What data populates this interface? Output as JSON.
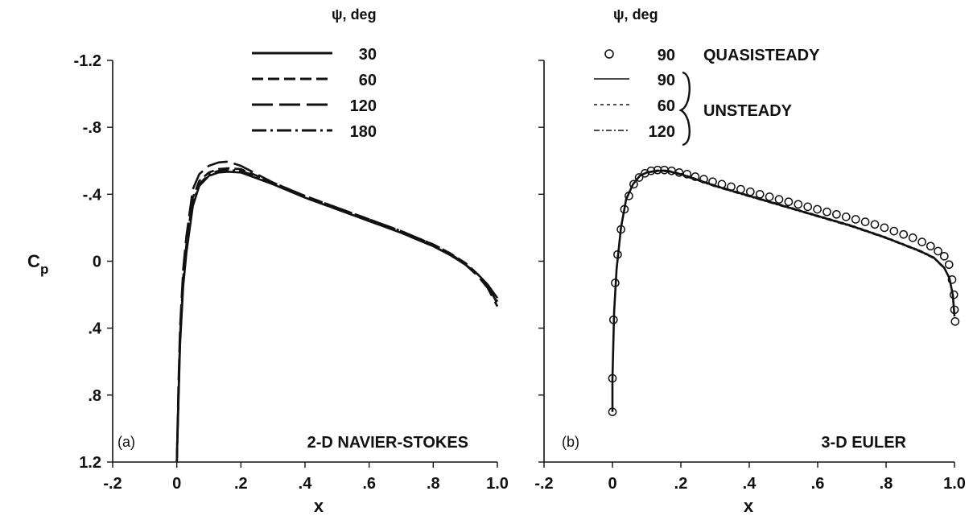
{
  "chart_data": [
    {
      "type": "line",
      "panel_label": "(a)",
      "title": "2-D NAVIER-STOKES",
      "xlabel": "x",
      "ylabel": "C",
      "ylabel_sub": "p",
      "xlim": [
        -0.2,
        1.0
      ],
      "ylim": [
        1.2,
        -1.2
      ],
      "y_inverted": true,
      "xticks": [
        -0.2,
        0,
        0.2,
        0.4,
        0.6,
        0.8,
        1.0
      ],
      "xtick_labels": [
        "-.2",
        "0",
        ".2",
        ".4",
        ".6",
        ".8",
        "1.0"
      ],
      "yticks": [
        -1.2,
        -0.8,
        -0.4,
        0,
        0.4,
        0.8,
        1.2
      ],
      "ytick_labels": [
        "-1.2",
        "-.8",
        "-.4",
        "0",
        ".4",
        ".8",
        "1.2"
      ],
      "grid": false,
      "legend": {
        "title": "ψ, deg",
        "placement": "top-center",
        "entries": [
          "30",
          "60",
          "120",
          "180"
        ]
      },
      "series": [
        {
          "name": "30",
          "style": "solid",
          "x": [
            0.0,
            0.005,
            0.01,
            0.02,
            0.03,
            0.05,
            0.07,
            0.1,
            0.13,
            0.16,
            0.2,
            0.3,
            0.4,
            0.5,
            0.6,
            0.7,
            0.8,
            0.85,
            0.9,
            0.94,
            0.97,
            1.0
          ],
          "y": [
            1.2,
            0.85,
            0.5,
            0.15,
            -0.05,
            -0.33,
            -0.45,
            -0.51,
            -0.53,
            -0.535,
            -0.53,
            -0.46,
            -0.38,
            -0.31,
            -0.24,
            -0.17,
            -0.09,
            -0.04,
            0.02,
            0.08,
            0.14,
            0.22
          ]
        },
        {
          "name": "60",
          "style": "dashed",
          "x": [
            0.0,
            0.005,
            0.01,
            0.02,
            0.03,
            0.05,
            0.07,
            0.1,
            0.13,
            0.16,
            0.2,
            0.3,
            0.4,
            0.5,
            0.6,
            0.7,
            0.8,
            0.85,
            0.9,
            0.94,
            0.97,
            1.0
          ],
          "y": [
            1.2,
            0.8,
            0.45,
            0.1,
            -0.1,
            -0.38,
            -0.48,
            -0.53,
            -0.55,
            -0.555,
            -0.55,
            -0.47,
            -0.39,
            -0.32,
            -0.25,
            -0.18,
            -0.1,
            -0.05,
            0.01,
            0.08,
            0.15,
            0.25
          ]
        },
        {
          "name": "120",
          "style": "long-dash",
          "x": [
            0.0,
            0.005,
            0.01,
            0.02,
            0.03,
            0.05,
            0.07,
            0.1,
            0.13,
            0.16,
            0.2,
            0.3,
            0.4,
            0.5,
            0.6,
            0.7,
            0.8,
            0.85,
            0.9,
            0.94,
            0.97,
            1.0
          ],
          "y": [
            1.2,
            0.75,
            0.4,
            0.05,
            -0.15,
            -0.43,
            -0.52,
            -0.57,
            -0.59,
            -0.595,
            -0.57,
            -0.47,
            -0.38,
            -0.31,
            -0.24,
            -0.17,
            -0.09,
            -0.04,
            0.02,
            0.09,
            0.16,
            0.27
          ]
        },
        {
          "name": "180",
          "style": "dash-dot",
          "x": [
            0.0,
            0.005,
            0.01,
            0.02,
            0.03,
            0.05,
            0.07,
            0.1,
            0.13,
            0.16,
            0.2,
            0.3,
            0.4,
            0.5,
            0.6,
            0.7,
            0.8,
            0.85,
            0.9,
            0.94,
            0.97,
            1.0
          ],
          "y": [
            1.2,
            0.82,
            0.48,
            0.12,
            -0.07,
            -0.35,
            -0.46,
            -0.52,
            -0.54,
            -0.545,
            -0.54,
            -0.47,
            -0.39,
            -0.32,
            -0.25,
            -0.18,
            -0.1,
            -0.05,
            0.02,
            0.08,
            0.15,
            0.24
          ]
        }
      ]
    },
    {
      "type": "line",
      "panel_label": "(b)",
      "title": "3-D EULER",
      "xlabel": "x",
      "xlim": [
        -0.2,
        1.0
      ],
      "ylim": [
        1.2,
        -1.2
      ],
      "y_inverted": true,
      "xticks": [
        -0.2,
        0,
        0.2,
        0.4,
        0.6,
        0.8,
        1.0
      ],
      "xtick_labels": [
        "-.2",
        "0",
        ".2",
        ".4",
        ".6",
        ".8",
        "1.0"
      ],
      "yticks": [
        -1.2,
        -0.8,
        -0.4,
        0,
        0.4,
        0.8,
        1.2
      ],
      "grid": false,
      "legend": {
        "title": "ψ, deg",
        "placement": "top-center",
        "entries": [
          "90",
          "90",
          "60",
          "120"
        ],
        "groups": [
          {
            "label": "QUASISTEADY",
            "members": [
              "90"
            ]
          },
          {
            "label": "UNSTEADY",
            "members": [
              "90",
              "60",
              "120"
            ]
          }
        ]
      },
      "series": [
        {
          "name": "90",
          "group": "QUASISTEADY",
          "style": "circle-markers",
          "x": [
            0.0,
            0.0,
            0.003,
            0.008,
            0.015,
            0.025,
            0.035,
            0.048,
            0.062,
            0.078,
            0.095,
            0.113,
            0.132,
            0.152,
            0.173,
            0.195,
            0.218,
            0.242,
            0.267,
            0.293,
            0.32,
            0.347,
            0.375,
            0.403,
            0.431,
            0.459,
            0.487,
            0.515,
            0.543,
            0.571,
            0.599,
            0.627,
            0.655,
            0.683,
            0.711,
            0.739,
            0.767,
            0.795,
            0.823,
            0.851,
            0.878,
            0.905,
            0.93,
            0.952,
            0.97,
            0.984,
            0.993,
            0.998,
            1.0,
            1.002
          ],
          "y": [
            0.9,
            0.7,
            0.35,
            0.13,
            -0.04,
            -0.19,
            -0.31,
            -0.39,
            -0.46,
            -0.5,
            -0.525,
            -0.54,
            -0.545,
            -0.545,
            -0.54,
            -0.53,
            -0.52,
            -0.505,
            -0.49,
            -0.475,
            -0.46,
            -0.445,
            -0.43,
            -0.415,
            -0.4,
            -0.385,
            -0.37,
            -0.355,
            -0.34,
            -0.325,
            -0.31,
            -0.295,
            -0.28,
            -0.265,
            -0.25,
            -0.235,
            -0.22,
            -0.2,
            -0.18,
            -0.16,
            -0.14,
            -0.115,
            -0.09,
            -0.06,
            -0.03,
            0.02,
            0.11,
            0.2,
            0.29,
            0.36
          ]
        },
        {
          "name": "90",
          "group": "UNSTEADY",
          "style": "solid",
          "x": [
            0.0,
            0.0,
            0.005,
            0.012,
            0.025,
            0.04,
            0.06,
            0.08,
            0.1,
            0.13,
            0.16,
            0.2,
            0.3,
            0.4,
            0.5,
            0.6,
            0.7,
            0.8,
            0.85,
            0.9,
            0.94,
            0.97,
            0.985,
            0.995,
            1.0
          ],
          "y": [
            0.9,
            0.7,
            0.3,
            0.05,
            -0.2,
            -0.37,
            -0.46,
            -0.51,
            -0.53,
            -0.54,
            -0.54,
            -0.52,
            -0.45,
            -0.39,
            -0.33,
            -0.27,
            -0.21,
            -0.14,
            -0.1,
            -0.06,
            -0.02,
            0.04,
            0.1,
            0.2,
            0.33
          ]
        },
        {
          "name": "60",
          "group": "UNSTEADY",
          "style": "dotted",
          "x": [
            0.0,
            0.0,
            0.005,
            0.012,
            0.025,
            0.04,
            0.06,
            0.08,
            0.1,
            0.13,
            0.16,
            0.2,
            0.3,
            0.4,
            0.5,
            0.6,
            0.7,
            0.8,
            0.85,
            0.9,
            0.94,
            0.97,
            0.985,
            0.995,
            1.0
          ],
          "y": [
            0.9,
            0.7,
            0.3,
            0.05,
            -0.2,
            -0.37,
            -0.46,
            -0.51,
            -0.53,
            -0.545,
            -0.545,
            -0.525,
            -0.455,
            -0.395,
            -0.335,
            -0.275,
            -0.215,
            -0.145,
            -0.105,
            -0.065,
            -0.025,
            0.035,
            0.095,
            0.19,
            0.32
          ]
        },
        {
          "name": "120",
          "group": "UNSTEADY",
          "style": "dash-dot-fine",
          "x": [
            0.0,
            0.0,
            0.005,
            0.012,
            0.025,
            0.04,
            0.06,
            0.08,
            0.1,
            0.13,
            0.16,
            0.2,
            0.3,
            0.4,
            0.5,
            0.6,
            0.7,
            0.8,
            0.85,
            0.9,
            0.94,
            0.97,
            0.985,
            0.995,
            1.0
          ],
          "y": [
            0.9,
            0.7,
            0.3,
            0.05,
            -0.2,
            -0.37,
            -0.46,
            -0.51,
            -0.53,
            -0.535,
            -0.535,
            -0.515,
            -0.445,
            -0.385,
            -0.325,
            -0.265,
            -0.205,
            -0.135,
            -0.095,
            -0.055,
            -0.015,
            0.045,
            0.105,
            0.21,
            0.34
          ]
        }
      ]
    }
  ]
}
